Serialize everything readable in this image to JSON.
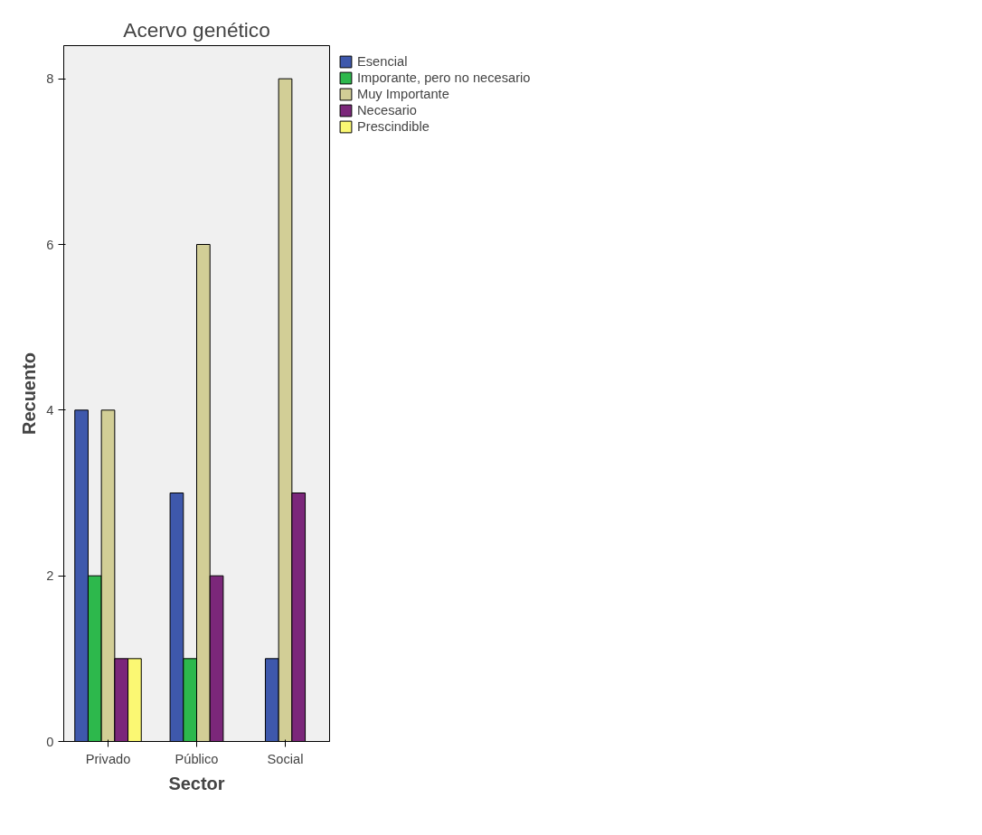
{
  "chart_data": {
    "type": "bar",
    "title": "Acervo genético",
    "xlabel": "Sector",
    "ylabel": "Recuento",
    "categories": [
      "Privado",
      "Público",
      "Social"
    ],
    "series": [
      {
        "name": "Esencial",
        "color": "#3e58ac",
        "values": [
          4,
          3,
          1
        ]
      },
      {
        "name": "Imporante, pero no necesario",
        "color": "#2db84c",
        "values": [
          2,
          1,
          null
        ]
      },
      {
        "name": "Muy Importante",
        "color": "#d2ce96",
        "values": [
          4,
          6,
          8
        ]
      },
      {
        "name": "Necesario",
        "color": "#7b277a",
        "values": [
          1,
          2,
          3
        ]
      },
      {
        "name": "Prescindible",
        "color": "#fbf873",
        "values": [
          1,
          null,
          null
        ]
      }
    ],
    "ylim": [
      0,
      8.4
    ],
    "yticks": [
      0,
      2,
      4,
      6,
      8
    ],
    "grid": false,
    "legend": "right"
  }
}
